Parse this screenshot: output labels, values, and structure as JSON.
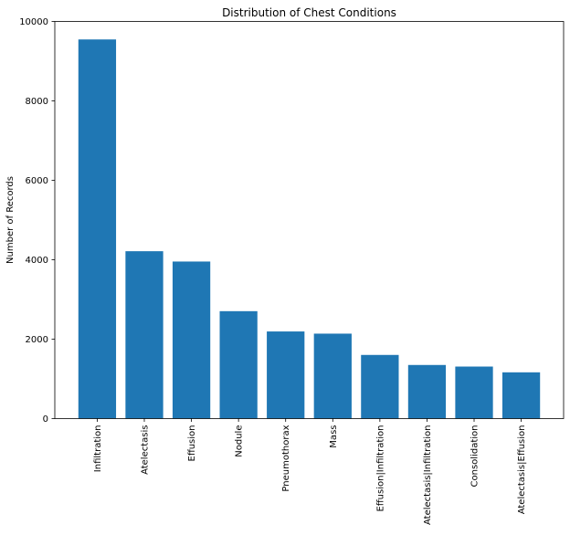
{
  "chart_data": {
    "type": "bar",
    "title": "Distribution of Chest Conditions",
    "xlabel": "",
    "ylabel": "Number of Records",
    "categories": [
      "Infiltration",
      "Atelectasis",
      "Effusion",
      "Nodule",
      "Pneumothorax",
      "Mass",
      "Effusion|Infiltration",
      "Atelectasis|Infiltration",
      "Consolidation",
      "Atelectasis|Effusion"
    ],
    "values": [
      9547,
      4215,
      3955,
      2705,
      2194,
      2139,
      1603,
      1350,
      1310,
      1165
    ],
    "ylim": [
      0,
      10000
    ],
    "yticks": [
      0,
      2000,
      4000,
      6000,
      8000,
      10000
    ],
    "ytick_labels": [
      "0",
      "2000",
      "4000",
      "6000",
      "8000",
      "10000"
    ],
    "bar_color": "#1f77b4",
    "grid": false,
    "legend": false
  }
}
